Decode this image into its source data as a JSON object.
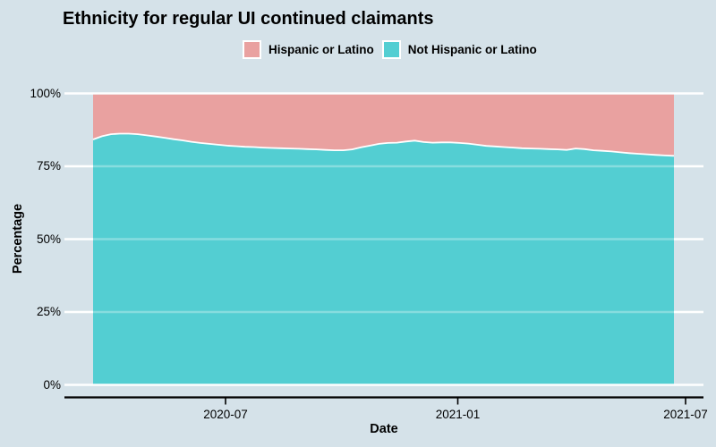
{
  "chart_data": {
    "type": "area",
    "stacked": true,
    "normalized_to_100": true,
    "title": "Ethnicity for regular UI continued claimants",
    "xlabel": "Date",
    "ylabel": "Percentage",
    "x_start_date": "2020-03-21",
    "x_end_date": "2021-06-19",
    "x_tick_labels": [
      "2020-07",
      "2021-01",
      "2021-07"
    ],
    "y_tick_labels": [
      "0%",
      "25%",
      "50%",
      "75%",
      "100%"
    ],
    "y_tick_values": [
      0,
      25,
      50,
      75,
      100
    ],
    "ylim": [
      0,
      100
    ],
    "grid": "white horizontal gridlines on panel background",
    "legend_position": "top-center",
    "series": [
      {
        "name": "Hispanic or Latino",
        "color": "#e9a1a0",
        "values": [
          15.8,
          14.7,
          14.0,
          13.8,
          13.8,
          14.0,
          14.4,
          14.8,
          15.2,
          15.7,
          16.1,
          16.6,
          17.0,
          17.3,
          17.6,
          17.9,
          18.1,
          18.3,
          18.4,
          18.6,
          18.7,
          18.8,
          18.9,
          19.0,
          19.1,
          19.2,
          19.4,
          19.5,
          19.5,
          19.2,
          18.5,
          17.9,
          17.3,
          17.0,
          16.9,
          16.5,
          16.2,
          16.7,
          16.9,
          16.8,
          16.8,
          17.0,
          17.2,
          17.6,
          18.0,
          18.2,
          18.4,
          18.6,
          18.8,
          18.9,
          19.0,
          19.1,
          19.2,
          19.4,
          18.9,
          19.1,
          19.5,
          19.7,
          19.9,
          20.2,
          20.5,
          20.7,
          20.9,
          21.1,
          21.3,
          21.4
        ]
      },
      {
        "name": "Not Hispanic or Latino",
        "color": "#53ced2",
        "values": [
          84.2,
          85.3,
          86.0,
          86.2,
          86.2,
          86.0,
          85.6,
          85.2,
          84.8,
          84.3,
          83.9,
          83.4,
          83.0,
          82.7,
          82.4,
          82.1,
          81.9,
          81.7,
          81.6,
          81.4,
          81.3,
          81.2,
          81.1,
          81.0,
          80.9,
          80.8,
          80.6,
          80.5,
          80.5,
          80.8,
          81.5,
          82.1,
          82.7,
          83.0,
          83.1,
          83.5,
          83.8,
          83.3,
          83.1,
          83.2,
          83.2,
          83.0,
          82.8,
          82.4,
          82.0,
          81.8,
          81.6,
          81.4,
          81.2,
          81.1,
          81.0,
          80.9,
          80.8,
          80.6,
          81.1,
          80.9,
          80.5,
          80.3,
          80.1,
          79.8,
          79.5,
          79.3,
          79.1,
          78.9,
          78.7,
          78.6
        ]
      }
    ]
  },
  "legend": [
    {
      "label": "Hispanic or Latino",
      "color": "#e9a1a0"
    },
    {
      "label": "Not Hispanic or Latino",
      "color": "#53ced2"
    }
  ],
  "colors": {
    "background": "#d5e2e9",
    "gridline": "#ffffff",
    "axis_line": "#000000",
    "text": "#000000",
    "hispanic_fill": "#e9a1a0",
    "not_hispanic_fill": "#53ced2",
    "series_boundary_stroke": "#ffffff"
  }
}
